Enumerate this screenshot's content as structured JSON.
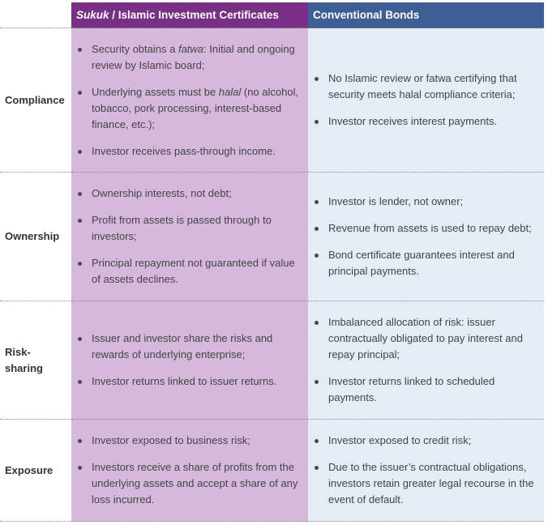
{
  "header": {
    "sukuk_em": "Sukuk",
    "sukuk_rest": " / Islamic Investment Certificates",
    "bonds": "Conventional Bonds"
  },
  "rows": [
    {
      "label": "Compliance",
      "sukuk": [
        {
          "pre": "Security obtains a ",
          "em": "fatwa",
          "post": ": Initial and ongoing review by Islamic board;"
        },
        {
          "pre": "Underlying assets must be ",
          "em": "halal",
          "post": " (no alcohol, tobacco, pork processing, interest-based finance, etc.);"
        },
        {
          "pre": "Investor receives pass-through income.",
          "em": "",
          "post": ""
        }
      ],
      "bonds": [
        "No Islamic review or fatwa certifying that security meets halal compliance criteria;",
        "Investor receives interest payments."
      ]
    },
    {
      "label": "Ownership",
      "sukuk": [
        {
          "pre": "Ownership interests, not debt;",
          "em": "",
          "post": ""
        },
        {
          "pre": "Profit from assets is passed through to investors;",
          "em": "",
          "post": ""
        },
        {
          "pre": "Principal repayment not guaranteed if value of assets declines.",
          "em": "",
          "post": ""
        }
      ],
      "bonds": [
        "Investor is lender, not owner;",
        "Revenue from assets is used to repay debt;",
        "Bond certificate guarantees interest and principal payments."
      ]
    },
    {
      "label": "Risk-sharing",
      "sukuk": [
        {
          "pre": "Issuer and investor share the risks and rewards of underlying enterprise;",
          "em": "",
          "post": ""
        },
        {
          "pre": "Investor returns linked to issuer returns.",
          "em": "",
          "post": ""
        }
      ],
      "bonds": [
        "Imbalanced allocation of risk: issuer contractually obligated to pay interest and repay principal;",
        "Investor returns linked to scheduled payments."
      ]
    },
    {
      "label": "Exposure",
      "sukuk": [
        {
          "pre": "Investor exposed to business risk;",
          "em": "",
          "post": ""
        },
        {
          "pre": "Investors receive a share of profits from the underlying assets and accept a share of any loss incurred.",
          "em": "",
          "post": ""
        }
      ],
      "bonds": [
        "Investor exposed to credit risk;",
        "Due to the issuer’s contractual obligations, investors retain greater legal recourse in the event of default."
      ]
    }
  ],
  "colors": {
    "sukuk_header": "#7a2f86",
    "sukuk_cell": "#d6b8dc",
    "bonds_header": "#3d5e95",
    "bonds_cell": "#e4ecf6"
  }
}
